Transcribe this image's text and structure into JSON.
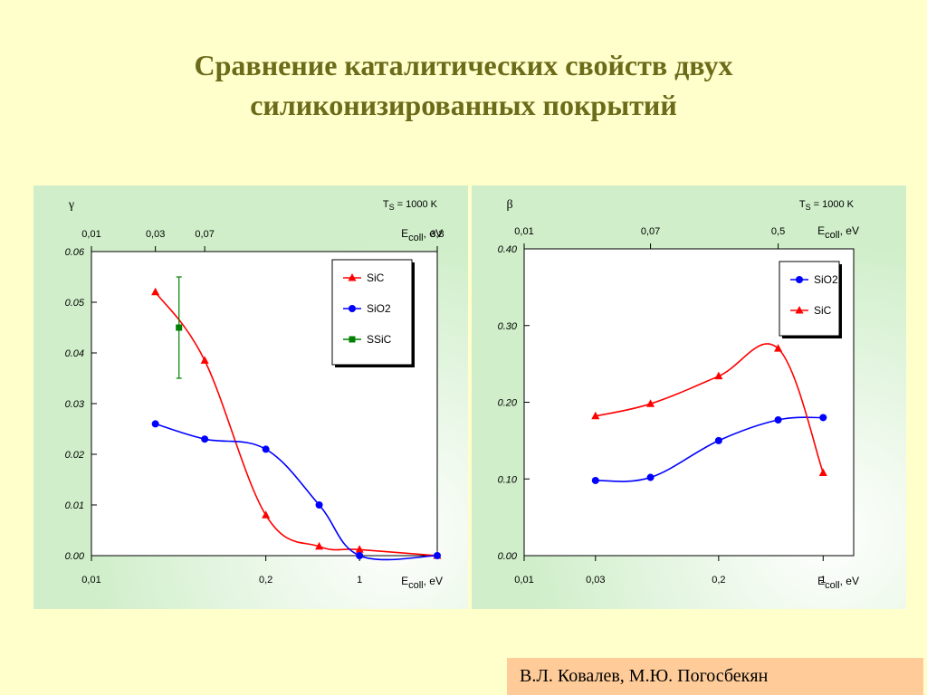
{
  "title": {
    "line1": "Сравнение каталитических свойств двух",
    "line2": "силиконизированных покрытий"
  },
  "author": "В.Л. Ковалев, М.Ю. Погосбекян",
  "colors": {
    "background": "#ffffcc",
    "title": "#6b6b1a",
    "panel": "#cfeec9",
    "author_box": "#ffcc99",
    "red": "#ff0000",
    "blue": "#0000ff",
    "green": "#008000"
  },
  "chart_data": [
    {
      "type": "line",
      "ylabel": "γ",
      "temperature_label": "T",
      "temperature_sub": "S",
      "temperature_value": "= 1000 K",
      "xlabel_main": "E",
      "xlabel_sub": "coll",
      "xlabel_unit": ", eV",
      "x_scale": "log",
      "bottom_ticks": [
        "0,01",
        "0,2",
        "1"
      ],
      "top_ticks": [
        "0,01",
        "0,03",
        "0,07",
        "3,8"
      ],
      "y_ticks": [
        "0.00",
        "0.01",
        "0.02",
        "0.03",
        "0.04",
        "0.05",
        "0.06"
      ],
      "ylim": [
        0,
        0.06
      ],
      "legend_position": "top-right",
      "series": [
        {
          "name": "SiC",
          "marker": "triangle",
          "color": "#ff0000",
          "x": [
            0.03,
            0.07,
            0.2,
            0.5,
            1,
            3.8
          ],
          "y": [
            0.052,
            0.0385,
            0.008,
            0.0018,
            0.0012,
            0.0
          ]
        },
        {
          "name": "SiO2",
          "marker": "circle",
          "color": "#0000ff",
          "x": [
            0.03,
            0.07,
            0.2,
            0.5,
            1,
            3.8
          ],
          "y": [
            0.026,
            0.023,
            0.021,
            0.01,
            0.0,
            0.0
          ]
        },
        {
          "name": "SSiC",
          "marker": "square",
          "color": "#008000",
          "x": [
            0.045
          ],
          "y": [
            0.045
          ],
          "error_low": [
            0.035
          ],
          "error_high": [
            0.055
          ]
        }
      ]
    },
    {
      "type": "line",
      "ylabel": "β",
      "temperature_label": "T",
      "temperature_sub": "S",
      "temperature_value": "= 1000 K",
      "xlabel_main": "E",
      "xlabel_sub": "coll",
      "xlabel_unit": ", eV",
      "x_scale": "log",
      "bottom_ticks": [
        "0,01",
        "0,03",
        "0,2",
        "1"
      ],
      "top_ticks": [
        "0,01",
        "0,07",
        "0,5"
      ],
      "y_ticks": [
        "0.00",
        "0.10",
        "0.20",
        "0.30",
        "0.40"
      ],
      "ylim": [
        0,
        0.4
      ],
      "legend_position": "top-right",
      "series": [
        {
          "name": "SiO2",
          "marker": "circle",
          "color": "#0000ff",
          "x": [
            0.03,
            0.07,
            0.2,
            0.5,
            1
          ],
          "y": [
            0.098,
            0.102,
            0.15,
            0.177,
            0.18
          ]
        },
        {
          "name": "SiC",
          "marker": "triangle",
          "color": "#ff0000",
          "x": [
            0.03,
            0.07,
            0.2,
            0.5,
            1
          ],
          "y": [
            0.182,
            0.198,
            0.234,
            0.27,
            0.108
          ]
        }
      ]
    }
  ]
}
